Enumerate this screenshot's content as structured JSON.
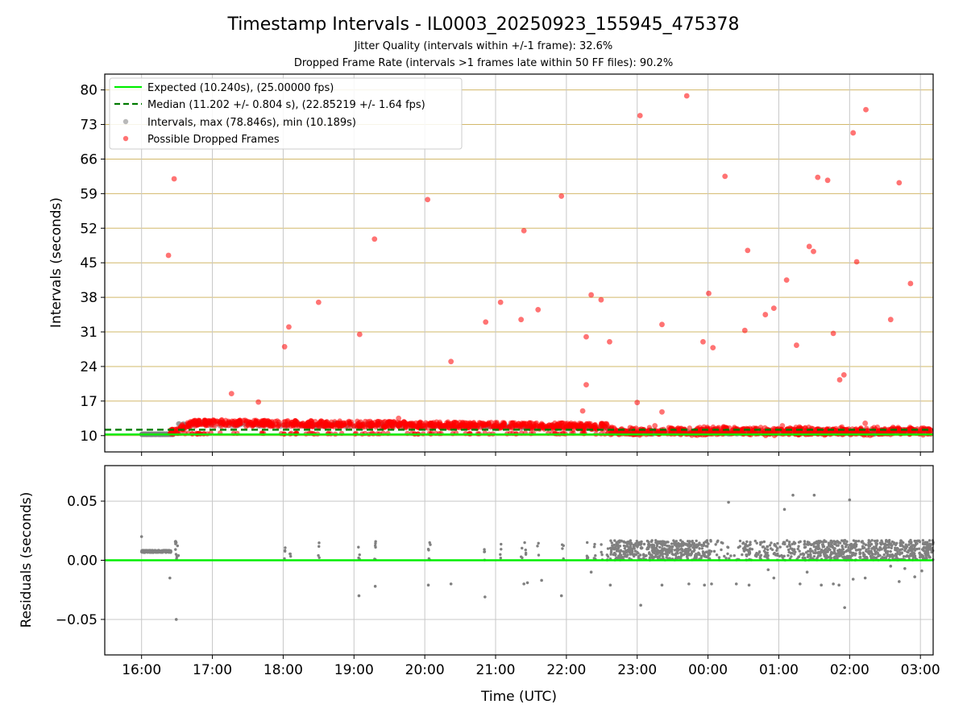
{
  "title": "Timestamp Intervals - IL0003_20250923_155945_475378",
  "subtitle_1": "Jitter Quality (intervals within +/-1 frame): 32.6%",
  "subtitle_2": "Dropped Frame Rate (intervals >1 frames late within 50 FF files): 90.2%",
  "colors": {
    "expected": "#00ee00",
    "median": "#007a00",
    "interval": "#808080",
    "dropped": "#ff0000",
    "grid_h_top": "#d2b86a",
    "grid": "#c8c8c8"
  },
  "chart_data": [
    {
      "type": "scatter",
      "ylabel": "Intervals (seconds)",
      "ylim": [
        6.7,
        83.2
      ],
      "yticks": [
        10,
        17,
        24,
        31,
        38,
        45,
        52,
        59,
        66,
        73,
        80
      ],
      "xlim_hours": [
        15.48,
        27.18
      ],
      "grid": "on",
      "legend_placement": "top-left",
      "legend": [
        {
          "key": "expected",
          "label": "Expected (10.240s), (25.00000 fps)"
        },
        {
          "key": "median",
          "label": "Median (11.202 +/- 0.804 s), (22.85219 +/- 1.64 fps)"
        },
        {
          "key": "intervals",
          "label": "Intervals, max (78.846s), min (10.189s)"
        },
        {
          "key": "dropped",
          "label": "Possible Dropped Frames"
        }
      ],
      "expected_value": 10.24,
      "median_value": 11.202,
      "series": [
        {
          "key": "dropped",
          "points": [
            [
              16.38,
              46.5
            ],
            [
              16.46,
              62.0
            ],
            [
              17.27,
              18.5
            ],
            [
              17.65,
              16.8
            ],
            [
              18.02,
              28.0
            ],
            [
              18.08,
              32.0
            ],
            [
              18.5,
              37.0
            ],
            [
              19.08,
              30.5
            ],
            [
              19.29,
              49.8
            ],
            [
              19.63,
              13.5
            ],
            [
              20.04,
              57.8
            ],
            [
              20.37,
              25.0
            ],
            [
              20.86,
              33.0
            ],
            [
              21.07,
              37.0
            ],
            [
              21.36,
              33.5
            ],
            [
              21.4,
              51.5
            ],
            [
              21.6,
              35.5
            ],
            [
              21.93,
              58.5
            ],
            [
              22.23,
              15.0
            ],
            [
              22.28,
              20.3
            ],
            [
              22.28,
              30.0
            ],
            [
              22.35,
              38.5
            ],
            [
              22.49,
              37.5
            ],
            [
              22.61,
              29.0
            ],
            [
              23.0,
              16.7
            ],
            [
              23.04,
              74.8
            ],
            [
              23.25,
              12.0
            ],
            [
              23.35,
              32.5
            ],
            [
              23.35,
              14.8
            ],
            [
              23.7,
              78.8
            ],
            [
              23.93,
              29.0
            ],
            [
              24.01,
              38.8
            ],
            [
              24.07,
              27.8
            ],
            [
              24.24,
              62.5
            ],
            [
              24.52,
              31.3
            ],
            [
              24.56,
              47.5
            ],
            [
              24.81,
              34.5
            ],
            [
              24.93,
              35.8
            ],
            [
              25.11,
              41.5
            ],
            [
              25.25,
              28.3
            ],
            [
              25.43,
              48.3
            ],
            [
              25.49,
              47.3
            ],
            [
              25.55,
              62.3
            ],
            [
              25.69,
              61.7
            ],
            [
              25.77,
              30.7
            ],
            [
              25.86,
              21.3
            ],
            [
              25.92,
              22.3
            ],
            [
              26.05,
              71.3
            ],
            [
              26.1,
              45.2
            ],
            [
              26.23,
              76.0
            ],
            [
              26.58,
              33.5
            ],
            [
              26.7,
              61.2
            ],
            [
              26.86,
              40.8
            ],
            [
              26.22,
              12.5
            ],
            [
              25.05,
              12.0
            ],
            [
              24.22,
              11.8
            ],
            [
              23.58,
              11.5
            ],
            [
              22.9,
              11.6
            ]
          ]
        }
      ]
    },
    {
      "type": "scatter",
      "xlabel": "Time (UTC)",
      "ylabel": "Residuals (seconds)",
      "ylim": [
        -0.08,
        0.08
      ],
      "yticks": [
        0.05,
        0.0,
        -0.05
      ],
      "ytick_labels": [
        "0.05",
        "0.00",
        "−0.05"
      ],
      "xlim_hours": [
        15.48,
        27.18
      ],
      "xticks_hours": [
        16,
        17,
        18,
        19,
        20,
        21,
        22,
        23,
        24,
        25,
        26,
        27
      ],
      "xtick_labels": [
        "16:00",
        "17:00",
        "18:00",
        "19:00",
        "20:00",
        "21:00",
        "22:00",
        "23:00",
        "00:00",
        "01:00",
        "02:00",
        "03:00"
      ],
      "grid": "on",
      "series": [
        {
          "key": "residual_outliers",
          "points": [
            [
              16.0,
              0.02
            ],
            [
              16.4,
              -0.015
            ],
            [
              16.49,
              -0.05
            ],
            [
              16.48,
              0.016
            ],
            [
              16.52,
              0.004
            ],
            [
              19.07,
              -0.03
            ],
            [
              19.3,
              -0.022
            ],
            [
              20.05,
              -0.021
            ],
            [
              20.37,
              -0.02
            ],
            [
              20.85,
              -0.031
            ],
            [
              21.4,
              -0.02
            ],
            [
              21.45,
              -0.019
            ],
            [
              21.65,
              -0.017
            ],
            [
              21.93,
              -0.03
            ],
            [
              22.35,
              -0.01
            ],
            [
              22.62,
              -0.021
            ],
            [
              23.05,
              -0.038
            ],
            [
              23.35,
              -0.021
            ],
            [
              23.73,
              -0.02
            ],
            [
              23.95,
              -0.021
            ],
            [
              24.05,
              -0.02
            ],
            [
              24.29,
              0.049
            ],
            [
              24.4,
              -0.02
            ],
            [
              24.58,
              -0.021
            ],
            [
              24.85,
              -0.008
            ],
            [
              24.93,
              -0.015
            ],
            [
              25.08,
              0.043
            ],
            [
              25.2,
              0.055
            ],
            [
              25.3,
              -0.02
            ],
            [
              25.4,
              -0.01
            ],
            [
              25.5,
              0.055
            ],
            [
              25.6,
              -0.021
            ],
            [
              25.77,
              -0.02
            ],
            [
              25.85,
              -0.021
            ],
            [
              25.93,
              -0.04
            ],
            [
              26.0,
              0.051
            ],
            [
              26.05,
              -0.016
            ],
            [
              26.22,
              -0.015
            ],
            [
              26.58,
              -0.005
            ],
            [
              26.7,
              -0.018
            ],
            [
              26.78,
              -0.007
            ],
            [
              26.92,
              -0.014
            ],
            [
              27.02,
              -0.009
            ]
          ]
        }
      ]
    }
  ]
}
